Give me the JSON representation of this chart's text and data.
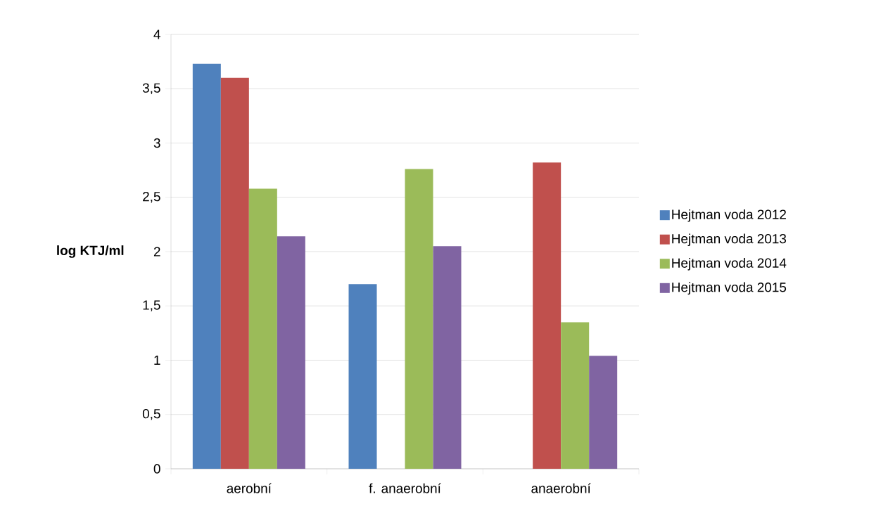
{
  "chart_data": {
    "type": "bar",
    "ylabel": "log KTJ/ml",
    "categories": [
      "aerobní",
      "f. anaerobní",
      "anaerobní"
    ],
    "series": [
      {
        "name": "Hejtman voda 2012",
        "color": "#4f81bd",
        "values": [
          3.73,
          1.7,
          null
        ]
      },
      {
        "name": "Hejtman voda 2013",
        "color": "#c0504d",
        "values": [
          3.6,
          null,
          2.82
        ]
      },
      {
        "name": "Hejtman voda 2014",
        "color": "#9bbb59",
        "values": [
          2.58,
          2.76,
          1.35
        ]
      },
      {
        "name": "Hejtman voda 2015",
        "color": "#8064a2",
        "values": [
          2.14,
          2.05,
          1.04
        ]
      }
    ],
    "ylim": [
      0,
      4
    ],
    "yticks": [
      0,
      {
        "value": 0.5,
        "label": "0,5"
      },
      1,
      {
        "value": 1.5,
        "label": "1,5"
      },
      2,
      {
        "value": 2.5,
        "label": "2,5"
      },
      3,
      {
        "value": 3.5,
        "label": "3,5"
      },
      4
    ],
    "grid": "y",
    "legend": "right"
  }
}
